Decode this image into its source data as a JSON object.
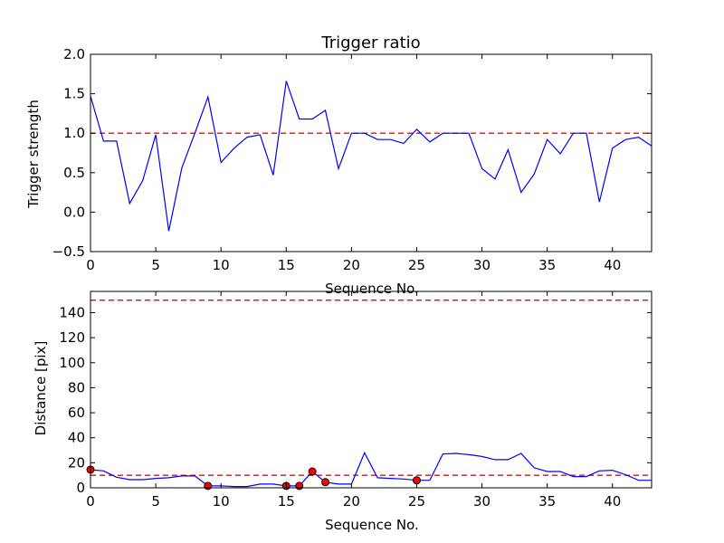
{
  "colors": {
    "line": "#0000ff",
    "threshold": "#ff0000",
    "marker": "#ff0000",
    "background": "#ffffff",
    "axes": "#000000"
  },
  "chart_data": [
    {
      "type": "line",
      "title": "Trigger ratio",
      "xlabel": "Sequence No.",
      "ylabel": "Trigger strength",
      "xlim": [
        0,
        43
      ],
      "ylim": [
        -0.5,
        2.0
      ],
      "grid": false,
      "xticks": [
        0,
        5,
        10,
        15,
        20,
        25,
        30,
        35,
        40
      ],
      "xtick_labels": [
        "0",
        "5",
        "10",
        "15",
        "20",
        "25",
        "30",
        "35",
        "40"
      ],
      "yticks": [
        -0.5,
        0.0,
        0.5,
        1.0,
        1.5,
        2.0
      ],
      "ytick_labels": [
        "−0.5",
        "0.0",
        "0.5",
        "1.0",
        "1.5",
        "2.0"
      ],
      "threshold_lines": [
        1.0
      ],
      "series": [
        {
          "name": "trigger strength",
          "x": [
            0,
            1,
            2,
            3,
            4,
            5,
            6,
            7,
            8,
            9,
            10,
            11,
            12,
            13,
            14,
            15,
            16,
            17,
            18,
            19,
            20,
            21,
            22,
            23,
            24,
            25,
            26,
            27,
            28,
            29,
            30,
            31,
            32,
            33,
            34,
            35,
            36,
            37,
            38,
            39,
            40,
            41,
            42,
            43
          ],
          "values": [
            1.47,
            0.9,
            0.9,
            0.11,
            0.4,
            0.98,
            -0.24,
            0.56,
            1.0,
            1.46,
            0.63,
            0.81,
            0.95,
            0.98,
            0.47,
            1.66,
            1.18,
            1.18,
            1.29,
            0.55,
            1.0,
            1.0,
            0.92,
            0.92,
            0.87,
            1.05,
            0.89,
            1.0,
            1.0,
            1.0,
            0.55,
            0.42,
            0.79,
            0.25,
            0.48,
            0.92,
            0.74,
            1.0,
            1.0,
            0.13,
            0.81,
            0.92,
            0.95,
            0.84
          ]
        }
      ]
    },
    {
      "type": "line",
      "title": "",
      "xlabel": "Sequence No.",
      "ylabel": "Distance [pix]",
      "xlim": [
        0,
        43
      ],
      "ylim": [
        0,
        157
      ],
      "grid": false,
      "xticks": [
        0,
        5,
        10,
        15,
        20,
        25,
        30,
        35,
        40
      ],
      "xtick_labels": [
        "0",
        "5",
        "10",
        "15",
        "20",
        "25",
        "30",
        "35",
        "40"
      ],
      "yticks": [
        0,
        20,
        40,
        60,
        80,
        100,
        120,
        140
      ],
      "ytick_labels": [
        "0",
        "20",
        "40",
        "60",
        "80",
        "100",
        "120",
        "140"
      ],
      "threshold_lines": [
        10,
        150
      ],
      "series": [
        {
          "name": "distance",
          "x": [
            0,
            1,
            2,
            3,
            4,
            5,
            6,
            7,
            8,
            9,
            10,
            11,
            12,
            13,
            14,
            15,
            16,
            17,
            18,
            19,
            20,
            21,
            22,
            23,
            24,
            25,
            26,
            27,
            28,
            29,
            30,
            31,
            32,
            33,
            34,
            35,
            36,
            37,
            38,
            39,
            40,
            41,
            42,
            43
          ],
          "values": [
            14.5,
            13.5,
            8.5,
            6.5,
            6.5,
            7.5,
            8,
            9.5,
            9.5,
            1.5,
            1.5,
            1,
            1,
            3,
            3,
            1.5,
            1.5,
            13,
            4.5,
            3,
            3,
            28,
            8,
            7.5,
            7,
            6,
            6,
            27,
            27.5,
            26.5,
            25,
            22.5,
            22.5,
            27.5,
            16,
            13,
            13,
            9,
            9,
            13.5,
            14,
            10.5,
            6,
            6
          ]
        }
      ],
      "markers": {
        "x": [
          0,
          9,
          15,
          16,
          17,
          18,
          25
        ],
        "values": [
          14.5,
          1.5,
          1.5,
          1.5,
          13,
          4.5,
          6
        ]
      }
    }
  ]
}
